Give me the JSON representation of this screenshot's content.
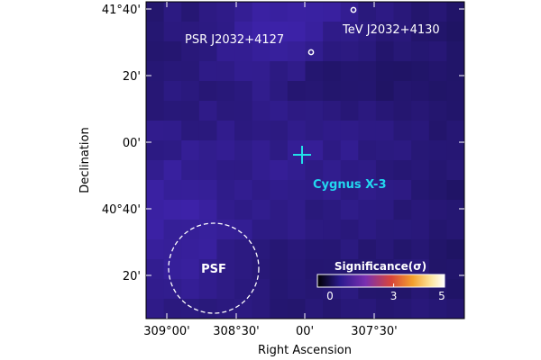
{
  "chart_data": {
    "type": "heatmap",
    "xlabel": "Right Ascension",
    "ylabel": "Declination",
    "x_ticks": [
      "309°00'",
      "308°30'",
      "00'",
      "307°30'"
    ],
    "y_ticks": [
      "41°40'",
      "20'",
      "00'",
      "40°40'",
      "20'"
    ],
    "x_range_deg": [
      309.25,
      307.25
    ],
    "y_range_deg": [
      40.0667,
      41.6667
    ],
    "colorbar": {
      "title": "Significance(σ)",
      "ticks": [
        "0",
        "3",
        "5"
      ],
      "range": [
        0,
        5
      ],
      "colors": [
        "#000000",
        "#2b1a8f",
        "#7a2fb0",
        "#d8443a",
        "#f3a02e",
        "#fde7a3",
        "#ffffff"
      ]
    },
    "grid": false,
    "sources": [
      {
        "name": "PSR J2032+4127",
        "ra": 308.05,
        "dec": 41.457,
        "marker": "circle"
      },
      {
        "name": "TeV J2032+4130",
        "ra": 307.93,
        "dec": 41.65,
        "marker": "circle"
      },
      {
        "name": "Cygnus X-3",
        "ra": 308.107,
        "dec": 40.958,
        "marker": "cross"
      }
    ],
    "psf_label": "PSF",
    "psf": {
      "ra": 308.87,
      "dec": 40.29,
      "radius_deg": 0.25
    },
    "significance_map": {
      "note_units": "sigma",
      "cols": 18,
      "rows": 16
    }
  },
  "labels": {
    "psr": "PSR J2032+4127",
    "tev": "TeV J2032+4130",
    "cyg": "Cygnus X-3",
    "psf": "PSF",
    "cbar_title": "Significance(σ)"
  },
  "colors": {
    "cross": "#22e0e8",
    "cyg_label": "#22d8f0",
    "marker": "#ffffff"
  }
}
